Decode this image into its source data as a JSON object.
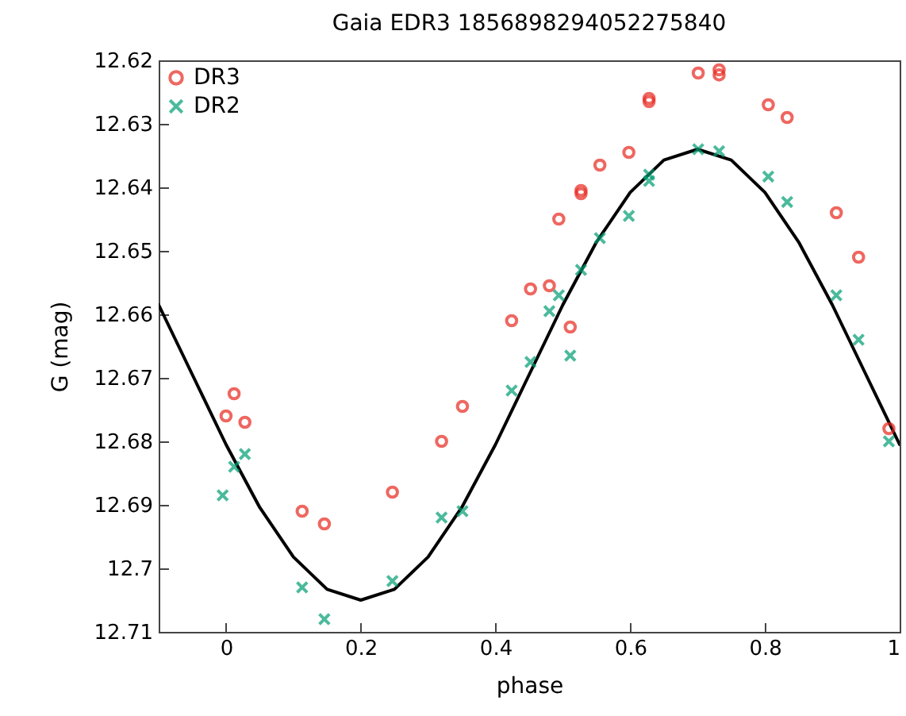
{
  "chart_data": {
    "type": "scatter",
    "title": "Gaia EDR3 1856898294052275840",
    "xlabel": "phase",
    "ylabel": "G (mag)",
    "xlim": [
      -0.1,
      1
    ],
    "xticks": [
      0,
      0.2,
      0.4,
      0.6,
      0.8,
      1
    ],
    "ylim": [
      12.71,
      12.62
    ],
    "yticks": [
      12.62,
      12.63,
      12.64,
      12.65,
      12.66,
      12.67,
      12.68,
      12.69,
      12.7,
      12.71
    ],
    "grid": false,
    "legend": "top left",
    "series": [
      {
        "name": "DR3",
        "color": "#e8281e",
        "marker": "circle",
        "x": [
          0,
          0.012,
          0.028,
          0.113,
          0.146,
          0.247,
          0.32,
          0.351,
          0.424,
          0.452,
          0.48,
          0.494,
          0.511,
          0.527,
          0.527,
          0.555,
          0.598,
          0.628,
          0.628,
          0.701,
          0.732,
          0.732,
          0.805,
          0.833,
          0.906,
          0.939,
          0.984
        ],
        "values": [
          12.676,
          12.6725,
          12.677,
          12.691,
          12.693,
          12.688,
          12.68,
          12.6745,
          12.661,
          12.656,
          12.6555,
          12.645,
          12.662,
          12.6405,
          12.641,
          12.6365,
          12.6345,
          12.626,
          12.6265,
          12.622,
          12.6215,
          12.6223,
          12.627,
          12.629,
          12.644,
          12.651,
          12.678
        ]
      },
      {
        "name": "DR2",
        "color": "#009e73",
        "marker": "cross",
        "x": [
          -0.005,
          0.012,
          0.028,
          0.113,
          0.146,
          0.247,
          0.32,
          0.351,
          0.424,
          0.452,
          0.48,
          0.494,
          0.511,
          0.527,
          0.555,
          0.598,
          0.628,
          0.628,
          0.701,
          0.732,
          0.805,
          0.833,
          0.906,
          0.939,
          0.984
        ],
        "values": [
          12.6885,
          12.684,
          12.682,
          12.703,
          12.708,
          12.702,
          12.692,
          12.691,
          12.672,
          12.6675,
          12.6595,
          12.657,
          12.6665,
          12.653,
          12.648,
          12.6445,
          12.638,
          12.639,
          12.634,
          12.6343,
          12.6383,
          12.6423,
          12.657,
          12.664,
          12.68
        ]
      },
      {
        "type": "line",
        "color": "#000000",
        "line_style": "solid",
        "x": [
          -0.1,
          -0.05,
          0,
          0.05,
          0.1,
          0.15,
          0.2,
          0.25,
          0.3,
          0.35,
          0.4,
          0.45,
          0.5,
          0.55,
          0.6,
          0.65,
          0.7,
          0.75,
          0.8,
          0.85,
          0.9,
          0.95,
          1
        ],
        "values": [
          12.6585,
          12.6695,
          12.6805,
          12.6904,
          12.6982,
          12.7033,
          12.705,
          12.7033,
          12.6982,
          12.6904,
          12.6805,
          12.6695,
          12.6585,
          12.6486,
          12.6408,
          12.6357,
          12.634,
          12.6357,
          12.6408,
          12.6486,
          12.6585,
          12.6695,
          12.6805
        ]
      }
    ]
  }
}
